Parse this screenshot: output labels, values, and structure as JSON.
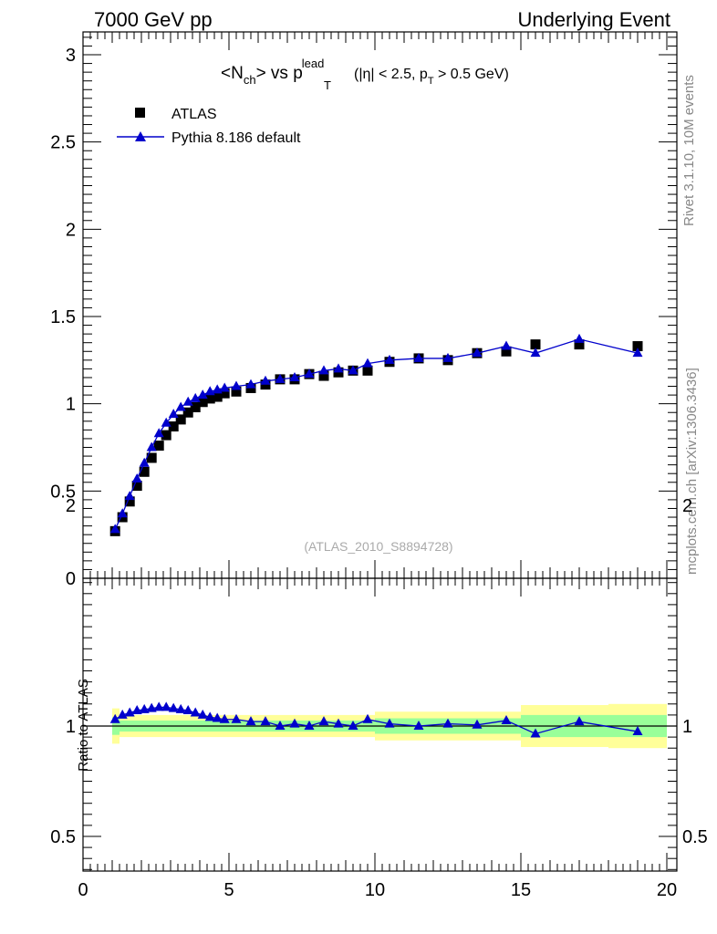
{
  "header": {
    "left": "7000 GeV pp",
    "right": "Underlying Event"
  },
  "side_labels": {
    "rivet": "Rivet 3.1.10,  10M events",
    "mcplots": "mcplots.cern.ch [arXiv:1306.3436]"
  },
  "chart_data": [
    {
      "type": "scatter",
      "panel": "main",
      "title": {
        "n_open": "<N",
        "n_sub": "ch",
        "vs_text": "> vs p",
        "p_sup": "lead",
        "p_sub": "T",
        "cut_a": "(|η| < 2.5, p",
        "cut_sub": "T",
        "cut_b": " > 0.5 GeV)"
      },
      "watermark": "(ATLAS_2010_S8894728)",
      "xlim": [
        0,
        20
      ],
      "ylim": [
        0,
        3.15
      ],
      "x_ticks": [
        "0",
        "5",
        "10",
        "15",
        "20"
      ],
      "y_ticks": [
        "0",
        "0.5",
        "1",
        "1.5",
        "2",
        "2.5",
        "3"
      ],
      "legend_position": "top-left",
      "series": [
        {
          "name": "ATLAS",
          "marker": "square",
          "color": "#000000",
          "x": [
            1.1,
            1.35,
            1.6,
            1.85,
            2.1,
            2.35,
            2.6,
            2.85,
            3.1,
            3.35,
            3.6,
            3.85,
            4.1,
            4.35,
            4.6,
            4.85,
            5.25,
            5.75,
            6.25,
            6.75,
            7.25,
            7.75,
            8.25,
            8.75,
            9.25,
            9.75,
            10.5,
            11.5,
            12.5,
            13.5,
            14.5,
            15.5,
            17.0,
            19.0
          ],
          "y": [
            0.27,
            0.35,
            0.44,
            0.53,
            0.61,
            0.69,
            0.76,
            0.82,
            0.87,
            0.91,
            0.95,
            0.98,
            1.01,
            1.03,
            1.04,
            1.06,
            1.07,
            1.09,
            1.11,
            1.14,
            1.14,
            1.17,
            1.16,
            1.18,
            1.19,
            1.19,
            1.24,
            1.26,
            1.25,
            1.29,
            1.3,
            1.34,
            1.34,
            1.33
          ]
        },
        {
          "name": "Pythia 8.186 default",
          "marker": "triangle",
          "color": "#0000cc",
          "x": [
            1.1,
            1.35,
            1.6,
            1.85,
            2.1,
            2.35,
            2.6,
            2.85,
            3.1,
            3.35,
            3.6,
            3.85,
            4.1,
            4.35,
            4.6,
            4.85,
            5.25,
            5.75,
            6.25,
            6.75,
            7.25,
            7.75,
            8.25,
            8.75,
            9.25,
            9.75,
            10.5,
            11.5,
            12.5,
            13.5,
            14.5,
            15.5,
            17.0,
            19.0
          ],
          "y": [
            0.28,
            0.37,
            0.47,
            0.57,
            0.66,
            0.75,
            0.83,
            0.89,
            0.94,
            0.98,
            1.01,
            1.03,
            1.05,
            1.07,
            1.08,
            1.09,
            1.1,
            1.11,
            1.13,
            1.14,
            1.15,
            1.17,
            1.19,
            1.2,
            1.19,
            1.23,
            1.25,
            1.26,
            1.26,
            1.29,
            1.33,
            1.29,
            1.37,
            1.29
          ]
        }
      ]
    },
    {
      "type": "line",
      "panel": "ratio",
      "ylabel": "Ratio to ATLAS",
      "xlim": [
        0,
        20
      ],
      "ylim": [
        0.35,
        2.25
      ],
      "y_ticks": [
        "0.5",
        "1",
        "2"
      ],
      "band_colors": {
        "inner": "#99ff99",
        "outer": "#ffff99",
        "reference_line": "#000000"
      },
      "bands": [
        {
          "x0": 1.0,
          "x1": 1.25,
          "inner": 0.04,
          "outer": 0.08
        },
        {
          "x0": 1.25,
          "x1": 10.0,
          "inner": 0.025,
          "outer": 0.05
        },
        {
          "x0": 10.0,
          "x1": 15.0,
          "inner": 0.035,
          "outer": 0.065
        },
        {
          "x0": 15.0,
          "x1": 18.0,
          "inner": 0.05,
          "outer": 0.095
        },
        {
          "x0": 18.0,
          "x1": 20.0,
          "inner": 0.05,
          "outer": 0.1
        }
      ],
      "series": [
        {
          "name": "Pythia 8.186 default",
          "color": "#0000cc",
          "x": [
            1.1,
            1.35,
            1.6,
            1.85,
            2.1,
            2.35,
            2.6,
            2.85,
            3.1,
            3.35,
            3.6,
            3.85,
            4.1,
            4.35,
            4.6,
            4.85,
            5.25,
            5.75,
            6.25,
            6.75,
            7.25,
            7.75,
            8.25,
            8.75,
            9.25,
            9.75,
            10.5,
            11.5,
            12.5,
            13.5,
            14.5,
            15.5,
            17.0,
            19.0
          ],
          "y": [
            1.03,
            1.05,
            1.06,
            1.07,
            1.075,
            1.08,
            1.085,
            1.085,
            1.08,
            1.075,
            1.07,
            1.06,
            1.05,
            1.04,
            1.035,
            1.03,
            1.03,
            1.02,
            1.02,
            1.0,
            1.01,
            1.0,
            1.02,
            1.01,
            1.0,
            1.03,
            1.01,
            1.0,
            1.01,
            1.005,
            1.025,
            0.965,
            1.02,
            0.975
          ]
        }
      ]
    }
  ]
}
